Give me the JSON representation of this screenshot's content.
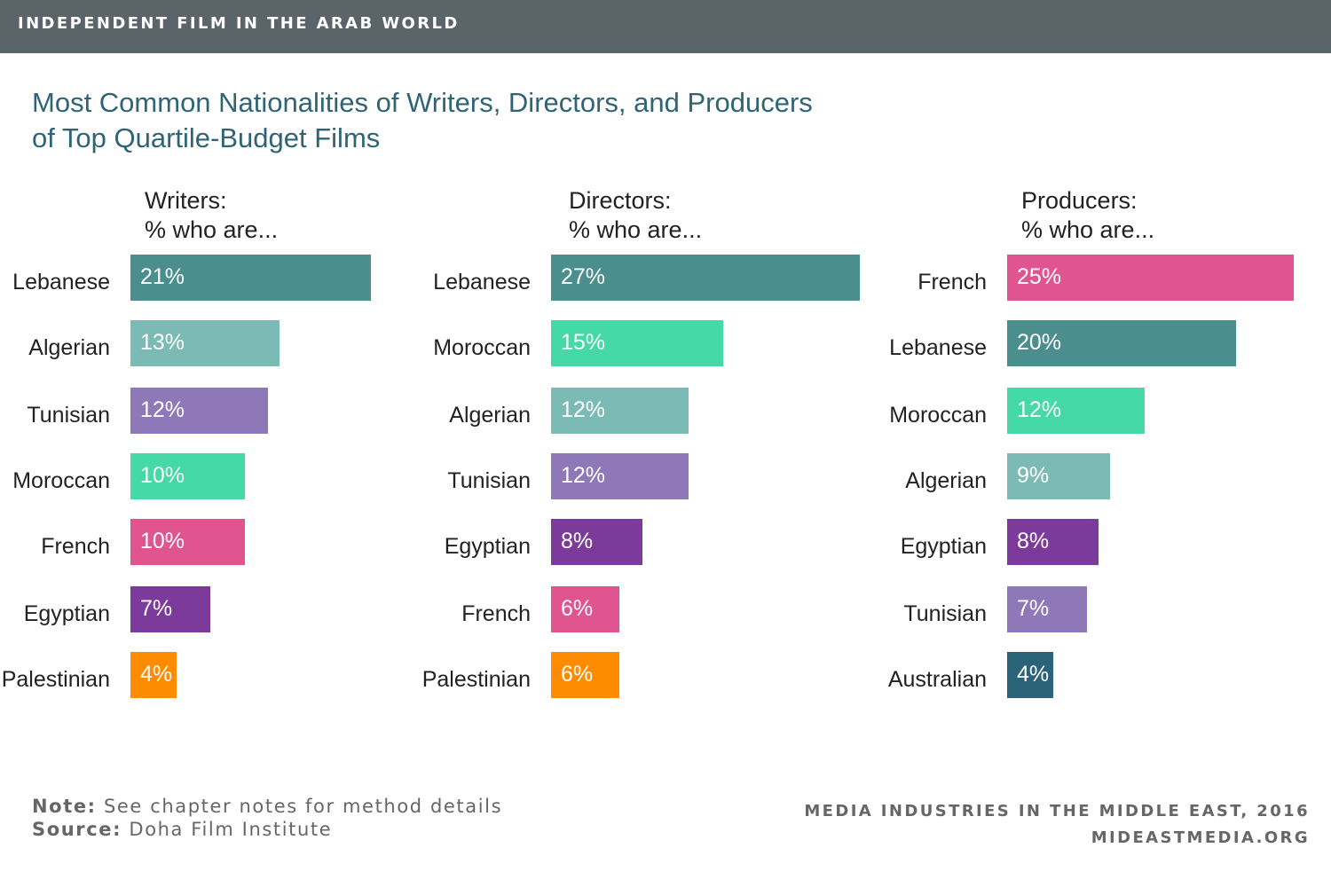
{
  "header": {
    "title": "INDEPENDENT FILM IN THE ARAB WORLD"
  },
  "chart_title": {
    "line1": "Most Common Nationalities of Writers, Directors, and Producers",
    "line2": "of Top Quartile-Budget Films"
  },
  "colors": {
    "Lebanese": "#4a8f8d",
    "Algerian": "#7bbab5",
    "Tunisian": "#8e78b8",
    "Moroccan": "#44d9a6",
    "French": "#e05590",
    "Egyptian": "#7c3a9a",
    "Palestinian": "#ff8c00",
    "Australian": "#2a6378"
  },
  "chart_data": [
    {
      "type": "bar",
      "orientation": "horizontal",
      "heading_line1": "Writers:",
      "heading_line2": "% who are...",
      "unit": "%",
      "categories": [
        "Lebanese",
        "Algerian",
        "Tunisian",
        "Moroccan",
        "French",
        "Egyptian",
        "Palestinian"
      ],
      "values": [
        21,
        13,
        12,
        10,
        10,
        7,
        4
      ],
      "labels": [
        "21%",
        "13%",
        "12%",
        "10%",
        "10%",
        "7%",
        "4%"
      ]
    },
    {
      "type": "bar",
      "orientation": "horizontal",
      "heading_line1": "Directors:",
      "heading_line2": "% who are...",
      "unit": "%",
      "categories": [
        "Lebanese",
        "Moroccan",
        "Algerian",
        "Tunisian",
        "Egyptian",
        "French",
        "Palestinian"
      ],
      "values": [
        27,
        15,
        12,
        12,
        8,
        6,
        6
      ],
      "labels": [
        "27%",
        "15%",
        "12%",
        "12%",
        "8%",
        "6%",
        "6%"
      ]
    },
    {
      "type": "bar",
      "orientation": "horizontal",
      "heading_line1": "Producers:",
      "heading_line2": "% who are...",
      "unit": "%",
      "categories": [
        "French",
        "Lebanese",
        "Moroccan",
        "Algerian",
        "Egyptian",
        "Tunisian",
        "Australian"
      ],
      "values": [
        25,
        20,
        12,
        9,
        8,
        7,
        4
      ],
      "labels": [
        "25%",
        "20%",
        "12%",
        "9%",
        "8%",
        "7%",
        "4%"
      ]
    }
  ],
  "footer": {
    "note_label": "Note:",
    "note_text": " See chapter notes for method details",
    "source_label": "Source:",
    "source_text": " Doha Film Institute",
    "publication": "MEDIA INDUSTRIES IN THE MIDDLE EAST, 2016",
    "website": "MIDEASTMEDIA.ORG"
  }
}
